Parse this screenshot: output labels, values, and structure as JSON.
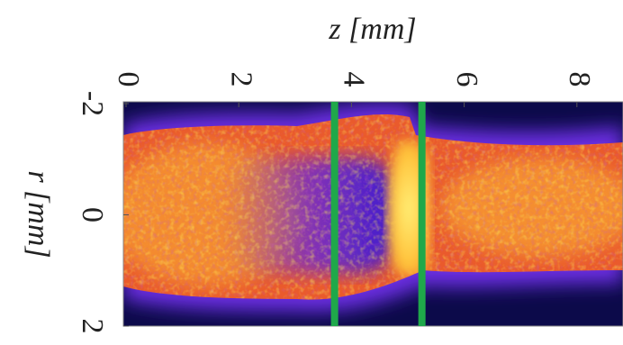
{
  "chart_data": {
    "type": "image",
    "x_label": "z [mm]",
    "y_label": "r [mm]",
    "xlim": [
      0,
      8.85
    ],
    "ylim": [
      -2,
      2
    ],
    "xticks": [
      0,
      2,
      4,
      6,
      8
    ],
    "yticks": [
      -2,
      0,
      2
    ],
    "vlines": [
      3.7,
      5.25
    ],
    "vline_color": "#1fa84a"
  }
}
